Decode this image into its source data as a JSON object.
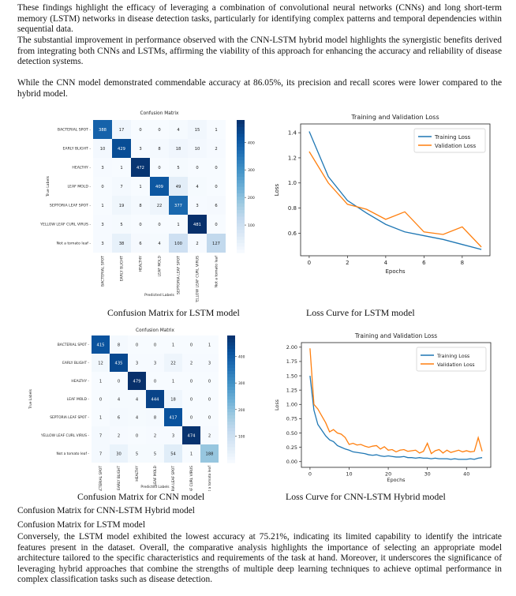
{
  "paragraphs_top": [
    "These findings highlight the efficacy of leveraging a combination of convolutional neural networks (CNNs) and long short-term memory (LSTM) networks in disease detection tasks, particularly for identifying complex patterns and temporal dependencies within sequential data.",
    "The substantial improvement in performance observed with the CNN-LSTM hybrid model highlights the synergistic benefits derived from integrating both CNNs and LSTMs, affirming the viability of this approach for enhancing the accuracy and reliability of disease detection systems.",
    "While the CNN model demonstrated commendable accuracy at 86.05%, its precision and recall scores were lower compared to the hybrid model."
  ],
  "captions": {
    "fig1": "Confusion Matrix for LSTM model",
    "fig2": "Loss Curve for LSTM model",
    "fig3": "Confusion Matrix for CNN model",
    "fig4": "Loss Curve for CNN-LSTM Hybrid model"
  },
  "lines_bottom": [
    "Confusion Matrix for CNN-LSTM Hybrid model",
    "Confusion Matrix for LSTM model"
  ],
  "paragraph_bottom": "Conversely, the LSTM model exhibited the lowest accuracy at 75.21%, indicating its limited capability to identify the intricate features present in the dataset. Overall, the comparative analysis highlights the importance of selecting an appropriate model architecture tailored to the specific characteristics and requirements of the task at hand. Moreover, it underscores the significance of leveraging hybrid approaches that combine the strengths of multiple deep learning techniques to achieve optimal performance in complex classification tasks such as disease detection.",
  "chart_data": [
    {
      "type": "heatmap",
      "title": "Confusion Matrix",
      "xlabel": "Predicted Labels",
      "ylabel": "True Labels",
      "labels": [
        "BACTERIAL SPOT",
        "EARLY BLIGHT",
        "HEALTHY",
        "LEAF MOLD",
        "SEPTORIA LEAF SPOT",
        "YELLOW LEAF CURL VIRUS",
        "Not a tomato leaf"
      ],
      "matrix": [
        [
          388,
          17,
          0,
          0,
          4,
          15,
          1
        ],
        [
          10,
          429,
          3,
          8,
          18,
          10,
          2
        ],
        [
          3,
          1,
          472,
          0,
          5,
          0,
          0
        ],
        [
          0,
          7,
          1,
          409,
          49,
          4,
          0
        ],
        [
          1,
          19,
          8,
          22,
          377,
          3,
          6
        ],
        [
          3,
          5,
          0,
          0,
          1,
          481,
          0
        ],
        [
          3,
          38,
          6,
          4,
          100,
          2,
          127
        ]
      ],
      "colorbar_ticks": [
        100,
        200,
        300,
        400
      ],
      "vmax": 481
    },
    {
      "type": "line",
      "title": "Training and Validation Loss",
      "xlabel": "Epochs",
      "ylabel": "Loss",
      "x": [
        0,
        1,
        2,
        3,
        4,
        5,
        6,
        7,
        8,
        9
      ],
      "series": [
        {
          "name": "Training Loss",
          "color": "#1f77b4",
          "values": [
            1.41,
            1.05,
            0.86,
            0.76,
            0.67,
            0.61,
            0.58,
            0.55,
            0.51,
            0.47
          ]
        },
        {
          "name": "Validation Loss",
          "color": "#ff7f0e",
          "values": [
            1.25,
            1.0,
            0.83,
            0.79,
            0.71,
            0.77,
            0.61,
            0.59,
            0.65,
            0.49
          ]
        }
      ],
      "xticks": [
        0,
        2,
        4,
        6,
        8
      ],
      "yticks": [
        0.6,
        0.8,
        1.0,
        1.2,
        1.4
      ],
      "xlim": [
        -0.45,
        9.45
      ],
      "ylim": [
        0.42,
        1.47
      ],
      "legend": "top-right",
      "grid": false
    },
    {
      "type": "heatmap",
      "title": "Confusion Matrix",
      "xlabel": "Predicted Labels",
      "ylabel": "True Labels",
      "labels": [
        "BACTERIAL SPOT",
        "EARLY BLIGHT",
        "HEALTHY",
        "LEAF MOLD",
        "SEPTORIA LEAF SPOT",
        "YELLOW LEAF CURL VIRUS",
        "Not a tomato leaf"
      ],
      "matrix": [
        [
          415,
          8,
          0,
          0,
          1,
          0,
          1
        ],
        [
          12,
          435,
          3,
          3,
          22,
          2,
          3
        ],
        [
          1,
          0,
          479,
          0,
          1,
          0,
          0
        ],
        [
          0,
          4,
          4,
          444,
          18,
          0,
          0
        ],
        [
          1,
          6,
          4,
          8,
          417,
          0,
          0
        ],
        [
          7,
          2,
          0,
          2,
          3,
          474,
          2
        ],
        [
          7,
          30,
          5,
          5,
          54,
          1,
          188
        ]
      ],
      "colorbar_ticks": [
        100,
        200,
        300,
        400
      ],
      "vmax": 479
    },
    {
      "type": "line",
      "title": "Training and Validation Loss",
      "xlabel": "Epochs",
      "ylabel": "Loss",
      "x": [
        0,
        1,
        2,
        3,
        4,
        5,
        6,
        7,
        8,
        9,
        10,
        11,
        12,
        13,
        14,
        15,
        16,
        17,
        18,
        19,
        20,
        21,
        22,
        23,
        24,
        25,
        26,
        27,
        28,
        29,
        30,
        31,
        32,
        33,
        34,
        35,
        36,
        37,
        38,
        39,
        40,
        41,
        42,
        43,
        44
      ],
      "series": [
        {
          "name": "Training Loss",
          "color": "#1f77b4",
          "values": [
            1.5,
            0.9,
            0.65,
            0.55,
            0.45,
            0.38,
            0.35,
            0.28,
            0.25,
            0.22,
            0.2,
            0.17,
            0.16,
            0.15,
            0.14,
            0.12,
            0.11,
            0.12,
            0.1,
            0.09,
            0.1,
            0.09,
            0.08,
            0.08,
            0.09,
            0.07,
            0.07,
            0.06,
            0.07,
            0.06,
            0.06,
            0.05,
            0.06,
            0.05,
            0.05,
            0.05,
            0.04,
            0.05,
            0.04,
            0.04,
            0.04,
            0.05,
            0.04,
            0.06,
            0.07
          ]
        },
        {
          "name": "Validation Loss",
          "color": "#ff7f0e",
          "values": [
            1.98,
            1.0,
            0.92,
            0.8,
            0.68,
            0.52,
            0.56,
            0.5,
            0.48,
            0.42,
            0.3,
            0.32,
            0.29,
            0.3,
            0.27,
            0.25,
            0.27,
            0.28,
            0.22,
            0.26,
            0.2,
            0.21,
            0.17,
            0.2,
            0.21,
            0.18,
            0.19,
            0.2,
            0.15,
            0.18,
            0.32,
            0.14,
            0.19,
            0.21,
            0.15,
            0.2,
            0.16,
            0.18,
            0.2,
            0.17,
            0.19,
            0.17,
            0.18,
            0.42,
            0.18
          ]
        }
      ],
      "xticks": [
        0,
        10,
        20,
        30,
        40
      ],
      "yticks": [
        0.0,
        0.25,
        0.5,
        0.75,
        1.0,
        1.25,
        1.5,
        1.75,
        2.0
      ],
      "xlim": [
        -2.2,
        46.2
      ],
      "ylim": [
        -0.1,
        2.08
      ],
      "legend": "top-right",
      "grid": false
    }
  ]
}
